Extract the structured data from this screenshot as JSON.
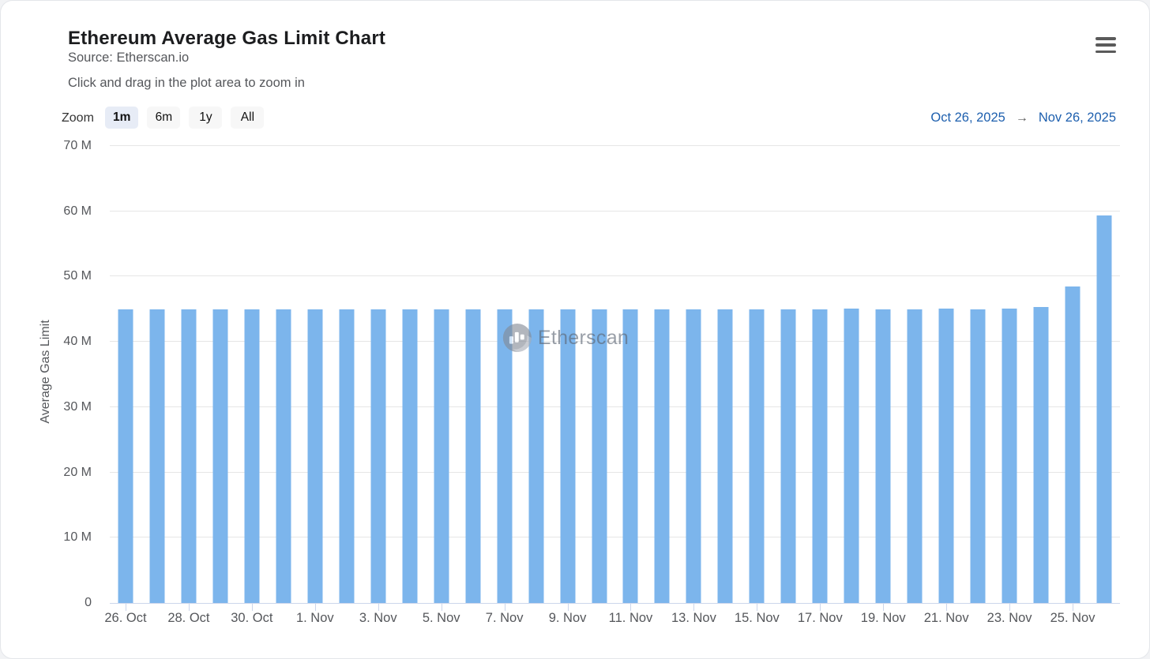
{
  "header": {
    "title": "Ethereum Average Gas Limit Chart",
    "source_line": "Source: Etherscan.io",
    "hint_line": "Click and drag in the plot area to zoom in"
  },
  "toolbar": {
    "zoom_label": "Zoom",
    "buttons": [
      {
        "label": "1m",
        "selected": true
      },
      {
        "label": "6m",
        "selected": false
      },
      {
        "label": "1y",
        "selected": false
      },
      {
        "label": "All",
        "selected": false
      }
    ],
    "range": {
      "from": "Oct 26, 2025",
      "arrow": "→",
      "to": "Nov 26, 2025"
    }
  },
  "watermark": {
    "text": "Etherscan",
    "icon": "etherscan-logo-icon"
  },
  "colors": {
    "bar": "#7cb5ec",
    "gridline": "#e6e6e6",
    "axis_line": "#ccd6eb",
    "link_blue": "#1d5fae",
    "selected_button_bg": "#e7ecf6"
  },
  "chart_data": {
    "type": "bar",
    "title": "Ethereum Average Gas Limit Chart",
    "xlabel": "",
    "ylabel": "Average Gas Limit",
    "ylim": [
      0,
      70000000
    ],
    "ymax_millions": 70,
    "grid": true,
    "legend": false,
    "values_unit": "million gas",
    "ytick_labels": [
      "0",
      "10 M",
      "20 M",
      "30 M",
      "40 M",
      "50 M",
      "60 M",
      "70 M"
    ],
    "xtick_labels": [
      "26. Oct",
      "28. Oct",
      "30. Oct",
      "1. Nov",
      "3. Nov",
      "5. Nov",
      "7. Nov",
      "9. Nov",
      "11. Nov",
      "13. Nov",
      "15. Nov",
      "17. Nov",
      "19. Nov",
      "21. Nov",
      "23. Nov",
      "25. Nov"
    ],
    "xtick_indices": [
      0,
      2,
      4,
      6,
      8,
      10,
      12,
      14,
      16,
      18,
      20,
      22,
      24,
      26,
      28,
      30
    ],
    "categories": [
      "Oct 26",
      "Oct 27",
      "Oct 28",
      "Oct 29",
      "Oct 30",
      "Oct 31",
      "Nov 1",
      "Nov 2",
      "Nov 3",
      "Nov 4",
      "Nov 5",
      "Nov 6",
      "Nov 7",
      "Nov 8",
      "Nov 9",
      "Nov 10",
      "Nov 11",
      "Nov 12",
      "Nov 13",
      "Nov 14",
      "Nov 15",
      "Nov 16",
      "Nov 17",
      "Nov 18",
      "Nov 19",
      "Nov 20",
      "Nov 21",
      "Nov 22",
      "Nov 23",
      "Nov 24",
      "Nov 25",
      "Nov 26"
    ],
    "values_millions": [
      45.0,
      45.0,
      45.0,
      45.0,
      45.0,
      45.0,
      45.0,
      45.0,
      45.0,
      45.0,
      45.0,
      45.0,
      45.0,
      45.0,
      45.0,
      45.0,
      45.0,
      45.0,
      45.0,
      45.0,
      45.0,
      45.0,
      45.0,
      45.1,
      45.0,
      45.0,
      45.1,
      45.0,
      45.1,
      45.3,
      48.5,
      59.4
    ]
  }
}
